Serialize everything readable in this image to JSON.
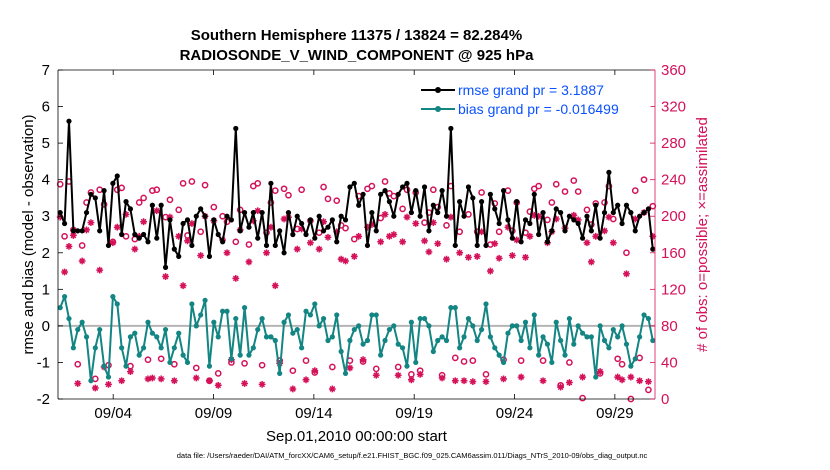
{
  "chart_data": {
    "type": "line",
    "title": "Southern Hemisphere 11375 / 13824 = 82.284%",
    "subtitle": "RADIOSONDE_V_WIND_COMPONENT @ 925 hPa",
    "xlabel": "Sep.01,2010 00:00:00 start",
    "ylabel": "rmse and bias (model - observation)",
    "y2label": "# of obs: o=possible; ×=assimilated",
    "footnote": "data file: /Users/raeder/DAI/ATM_forcXX/CAM6_setup/f.e21.FHIST_BGC.f09_025.CAM6assim.011/Diags_NTrS_2010-09/obs_diag_output.nc",
    "x_tick_labels": [
      "09/04",
      "09/09",
      "09/14",
      "09/19",
      "09/24",
      "09/29"
    ],
    "x_tick_days": [
      4,
      9,
      14,
      19,
      24,
      29
    ],
    "xlim": [
      1.25,
      31.0
    ],
    "ylim": [
      -2,
      7
    ],
    "y_ticks": [
      -2,
      -1,
      0,
      1,
      2,
      3,
      4,
      5,
      6,
      7
    ],
    "y2lim": [
      0,
      360
    ],
    "y2_ticks": [
      0,
      40,
      80,
      120,
      160,
      200,
      240,
      280,
      320,
      360
    ],
    "legend": {
      "position": "top-right",
      "entries": [
        "rmse grand pr = 3.1887",
        "bias grand pr = -0.016499"
      ]
    },
    "colors": {
      "rmse": "#000000",
      "bias": "#138583",
      "obs": "#d41159",
      "zero_line": "#b4b4b4",
      "legend_text": "#0a52ff",
      "right_axis": "#d41159"
    },
    "series": [
      {
        "name": "rmse",
        "axis": "left",
        "values": [
          3.1,
          2.8,
          5.6,
          2.6,
          2.6,
          2.6,
          3.1,
          3.6,
          3.5,
          2.6,
          3.7,
          2.2,
          3.9,
          4.1,
          2.5,
          3.4,
          3.2,
          2.5,
          2.4,
          2.5,
          2.3,
          3.3,
          2.4,
          3.3,
          1.6,
          2.9,
          2.1,
          1.9,
          2.8,
          2.9,
          2.2,
          3.0,
          3.2,
          3.0,
          1.9,
          2.9,
          2.5,
          2.3,
          3.0,
          2.9,
          5.4,
          2.6,
          3.1,
          2.7,
          3.1,
          2.4,
          3.1,
          2.2,
          3.9,
          2.2,
          2.6,
          2.0,
          3.1,
          2.5,
          3.0,
          2.8,
          2.5,
          2.9,
          2.4,
          3.0,
          2.6,
          2.7,
          2.9,
          2.3,
          3.0,
          2.9,
          3.8,
          3.9,
          3.3,
          3.6,
          2.2,
          3.1,
          2.6,
          3.6,
          3.7,
          3.4,
          3.0,
          3.6,
          3.8,
          3.9,
          3.1,
          3.7,
          3.0,
          3.8,
          2.6,
          3.3,
          3.1,
          3.7,
          3.0,
          5.4,
          2.2,
          3.4,
          3.0,
          3.8,
          3.5,
          2.2,
          3.4,
          2.2,
          3.6,
          3.2,
          2.8,
          3.7,
          2.9,
          2.4,
          3.4,
          2.3,
          2.9,
          2.8,
          3.6,
          2.5,
          3.1,
          2.3,
          2.6,
          3.2,
          3.1,
          2.6,
          3.0,
          2.9,
          2.8,
          2.4,
          3.0,
          2.6,
          3.3,
          2.4,
          3.1,
          4.2,
          3.1,
          3.3,
          2.8,
          3.3,
          3.1,
          2.6,
          3.0,
          3.1,
          3.2,
          2.1
        ]
      },
      {
        "name": "bias",
        "axis": "left",
        "values": [
          0.5,
          0.8,
          0.2,
          -0.6,
          -0.1,
          0.1,
          -0.3,
          -1.5,
          -0.6,
          -0.1,
          -1.1,
          -1.4,
          0.8,
          0.6,
          -0.6,
          -1.1,
          -0.3,
          -0.2,
          -0.8,
          -0.6,
          0.1,
          -0.2,
          -0.3,
          -0.6,
          -0.1,
          -1.0,
          -0.6,
          -0.2,
          -0.8,
          -1.0,
          0.6,
          0.0,
          0.3,
          0.7,
          -1.1,
          0.1,
          -0.3,
          0.4,
          0.4,
          -0.9,
          0.2,
          -0.8,
          0.5,
          -0.8,
          -0.6,
          -0.1,
          0.2,
          -0.3,
          -0.3,
          -0.4,
          -1.3,
          0.1,
          0.3,
          -0.2,
          -0.1,
          -0.6,
          0.4,
          0.3,
          0.6,
          0.0,
          0.2,
          -0.4,
          -0.3,
          0.3,
          -0.7,
          -1.3,
          -0.4,
          -0.1,
          0.0,
          -0.5,
          -0.4,
          0.3,
          0.3,
          -0.8,
          -0.4,
          -0.1,
          0.0,
          -0.5,
          -0.6,
          -1.1,
          0.1,
          -1.0,
          0.2,
          0.2,
          0.0,
          -0.7,
          -0.4,
          -0.3,
          -0.4,
          0.5,
          0.5,
          -0.6,
          -0.3,
          0.2,
          0.0,
          -0.4,
          -0.1,
          0.6,
          -0.3,
          -0.6,
          -0.8,
          -1.0,
          -0.2,
          0.0,
          0.0,
          -0.4,
          0.1,
          -0.6,
          0.3,
          -0.8,
          -0.3,
          -0.5,
          -1.0,
          0.1,
          -0.4,
          -0.8,
          0.2,
          -0.5,
          0.0,
          -0.2,
          -0.3,
          -0.3,
          -1.4,
          0.0,
          -0.4,
          -0.6,
          -0.1,
          -0.3,
          0.0,
          -0.5,
          -1.1,
          -0.9,
          -0.3,
          0.3,
          0.2,
          -0.4
        ]
      },
      {
        "name": "obs possible",
        "axis": "right",
        "marker": "o",
        "values": [
          235,
          178,
          238,
          185,
          38,
          168,
          215,
          226,
          22,
          229,
          213,
          37,
          172,
          229,
          231,
          178,
          36,
          175,
          215,
          220,
          43,
          228,
          229,
          44,
          199,
          218,
          38,
          207,
          236,
          179,
          238,
          34,
          183,
          234,
          20,
          210,
          28,
          200,
          194,
          40,
          172,
          207,
          39,
          169,
          233,
          236,
          37,
          182,
          215,
          228,
          42,
          230,
          223,
          31,
          186,
          229,
          42,
          195,
          29,
          182,
          232,
          219,
          35,
          217,
          190,
          187,
          42,
          175,
          222,
          41,
          230,
          233,
          33,
          198,
          238,
          225,
          222,
          35,
          208,
          229,
          27,
          226,
          31,
          193,
          204,
          229,
          210,
          26,
          190,
          233,
          45,
          183,
          41,
          202,
          42,
          183,
          226,
          27,
          169,
          214,
          183,
          43,
          228,
          184,
          215,
          42,
          182,
          205,
          230,
          233,
          42,
          196,
          215,
          235,
          15,
          227,
          40,
          239,
          227,
          1,
          207,
          191,
          214,
          28,
          215,
          233,
          197,
          44,
          38,
          160,
          0,
          228,
          45,
          240,
          10,
          211
        ]
      },
      {
        "name": "obs assimilated",
        "axis": "right",
        "marker": "*",
        "values": [
          199,
          139,
          167,
          179,
          17,
          151,
          185,
          193,
          12,
          141,
          35,
          16,
          171,
          188,
          20,
          202,
          30,
          164,
          178,
          194,
          22,
          23,
          206,
          22,
          134,
          199,
          20,
          178,
          124,
          173,
          192,
          23,
          157,
          200,
          20,
          195,
          15,
          174,
          160,
          43,
          132,
          185,
          17,
          150,
          195,
          206,
          16,
          160,
          188,
          124,
          39,
          197,
          199,
          11,
          164,
          186,
          21,
          171,
          31,
          164,
          194,
          177,
          11,
          183,
          153,
          151,
          34,
          156,
          178,
          43,
          188,
          191,
          26,
          172,
          202,
          178,
          180,
          26,
          172,
          199,
          21,
          192,
          27,
          173,
          161,
          193,
          170,
          23,
          153,
          199,
          20,
          160,
          20,
          155,
          19,
          156,
          183,
          19,
          140,
          170,
          154,
          22,
          188,
          157,
          174,
          24,
          155,
          178,
          201,
          200,
          20,
          171,
          183,
          197,
          13,
          187,
          18,
          201,
          196,
          24,
          171,
          150,
          178,
          30,
          184,
          199,
          171,
          24,
          21,
          137,
          24,
          197,
          20,
          204,
          19,
          178
        ]
      }
    ]
  }
}
